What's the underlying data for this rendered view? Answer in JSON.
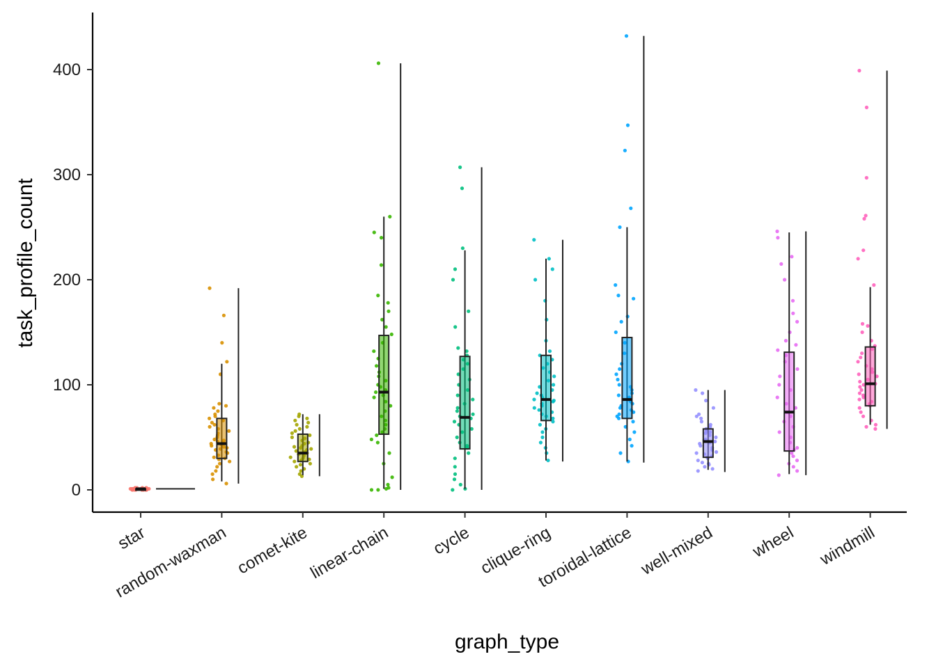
{
  "chart_data": {
    "type": "boxplot",
    "xlabel": "graph_type",
    "ylabel": "task_profile_count",
    "ylim": [
      -20,
      455
    ],
    "yticks": [
      0,
      100,
      200,
      300,
      400
    ],
    "grid": false,
    "legend": "none",
    "categories": [
      {
        "name": "star",
        "color": "#F8766D",
        "whisker_low": 0,
        "q1": 0,
        "median": 1,
        "q3": 1,
        "whisker_high": 2,
        "range_min": 0,
        "range_max": 2,
        "points": [
          0,
          0,
          1,
          1,
          2,
          0,
          1,
          0,
          1,
          1,
          0,
          2,
          1,
          0,
          1,
          1,
          0,
          1,
          2,
          0,
          1,
          1,
          0,
          1,
          1,
          0,
          1,
          0,
          2,
          1
        ]
      },
      {
        "name": "random-waxman",
        "color": "#D89000",
        "whisker_low": 8,
        "q1": 30,
        "median": 44,
        "q3": 68,
        "whisker_high": 120,
        "range_min": 6,
        "range_max": 192,
        "points": [
          6,
          10,
          15,
          18,
          22,
          25,
          27,
          29,
          30,
          31,
          33,
          35,
          36,
          38,
          39,
          40,
          41,
          42,
          43,
          44,
          45,
          46,
          47,
          48,
          50,
          52,
          54,
          56,
          58,
          60,
          62,
          64,
          66,
          68,
          70,
          72,
          75,
          78,
          80,
          82,
          110,
          122,
          140,
          166,
          192
        ]
      },
      {
        "name": "comet-kite",
        "color": "#A3A500",
        "whisker_low": 14,
        "q1": 27,
        "median": 35,
        "q3": 53,
        "whisker_high": 72,
        "range_min": 13,
        "range_max": 72,
        "points": [
          13,
          15,
          18,
          20,
          22,
          24,
          25,
          27,
          28,
          29,
          30,
          31,
          32,
          33,
          34,
          35,
          36,
          37,
          38,
          39,
          40,
          41,
          42,
          44,
          45,
          47,
          49,
          50,
          52,
          54,
          56,
          58,
          60,
          62,
          64,
          66,
          68,
          70,
          72
        ]
      },
      {
        "name": "linear-chain",
        "color": "#39B600",
        "whisker_low": 1,
        "q1": 53,
        "median": 93,
        "q3": 147,
        "whisker_high": 260,
        "range_min": 0,
        "range_max": 406,
        "points": [
          0,
          0,
          1,
          2,
          5,
          12,
          25,
          35,
          45,
          48,
          52,
          55,
          58,
          62,
          66,
          70,
          75,
          80,
          84,
          88,
          90,
          93,
          95,
          98,
          100,
          104,
          108,
          112,
          118,
          125,
          132,
          140,
          148,
          155,
          162,
          170,
          178,
          185,
          214,
          240,
          245,
          260,
          406
        ]
      },
      {
        "name": "cycle",
        "color": "#00BF7D",
        "whisker_low": 1,
        "q1": 39,
        "median": 69,
        "q3": 127,
        "whisker_high": 228,
        "range_min": 0,
        "range_max": 307,
        "points": [
          0,
          1,
          5,
          10,
          15,
          22,
          30,
          35,
          40,
          42,
          45,
          50,
          55,
          58,
          62,
          65,
          68,
          70,
          72,
          75,
          78,
          82,
          86,
          90,
          95,
          100,
          105,
          110,
          115,
          120,
          124,
          128,
          132,
          135,
          155,
          170,
          200,
          210,
          230,
          287,
          307
        ]
      },
      {
        "name": "clique-ring",
        "color": "#00BFC4",
        "whisker_low": 28,
        "q1": 66,
        "median": 86,
        "q3": 128,
        "whisker_high": 220,
        "range_min": 27,
        "range_max": 238,
        "points": [
          28,
          35,
          40,
          45,
          50,
          55,
          58,
          62,
          65,
          68,
          70,
          72,
          74,
          76,
          78,
          80,
          82,
          84,
          85,
          86,
          88,
          90,
          92,
          95,
          98,
          100,
          104,
          108,
          112,
          116,
          120,
          124,
          128,
          132,
          142,
          162,
          180,
          200,
          210,
          220,
          238
        ]
      },
      {
        "name": "toroidal-lattice",
        "color": "#00A5FF",
        "whisker_low": 27,
        "q1": 68,
        "median": 86,
        "q3": 145,
        "whisker_high": 250,
        "range_min": 26,
        "range_max": 432,
        "points": [
          27,
          35,
          42,
          48,
          55,
          60,
          65,
          68,
          70,
          72,
          74,
          76,
          78,
          80,
          82,
          84,
          86,
          88,
          90,
          92,
          95,
          98,
          100,
          105,
          110,
          115,
          120,
          130,
          140,
          150,
          160,
          165,
          182,
          185,
          195,
          250,
          268,
          323,
          347,
          432
        ]
      },
      {
        "name": "well-mixed",
        "color": "#9590FF",
        "whisker_low": 19,
        "q1": 31,
        "median": 46,
        "q3": 58,
        "whisker_high": 95,
        "range_min": 17,
        "range_max": 95,
        "points": [
          18,
          20,
          22,
          24,
          25,
          26,
          28,
          30,
          31,
          32,
          34,
          35,
          36,
          38,
          40,
          42,
          44,
          45,
          46,
          47,
          48,
          50,
          52,
          54,
          55,
          56,
          58,
          60,
          62,
          65,
          68,
          70,
          72,
          78,
          85,
          92,
          95
        ]
      },
      {
        "name": "wheel",
        "color": "#E76BF3",
        "whisker_low": 15,
        "q1": 37,
        "median": 74,
        "q3": 131,
        "whisker_high": 245,
        "range_min": 14,
        "range_max": 246,
        "points": [
          14,
          18,
          22,
          25,
          28,
          32,
          35,
          38,
          40,
          45,
          50,
          55,
          60,
          65,
          70,
          74,
          78,
          82,
          88,
          95,
          100,
          108,
          115,
          122,
          128,
          133,
          138,
          142,
          150,
          160,
          168,
          180,
          200,
          215,
          222,
          240,
          246
        ]
      },
      {
        "name": "windmill",
        "color": "#FF62BC",
        "whisker_low": 62,
        "q1": 80,
        "median": 101,
        "q3": 136,
        "whisker_high": 193,
        "range_min": 58,
        "range_max": 399,
        "points": [
          58,
          60,
          62,
          66,
          70,
          74,
          78,
          80,
          82,
          84,
          86,
          88,
          90,
          92,
          95,
          98,
          100,
          101,
          103,
          105,
          108,
          110,
          112,
          115,
          118,
          122,
          126,
          130,
          134,
          137,
          142,
          150,
          156,
          158,
          195,
          220,
          228,
          258,
          261,
          297,
          364,
          399
        ]
      }
    ]
  }
}
